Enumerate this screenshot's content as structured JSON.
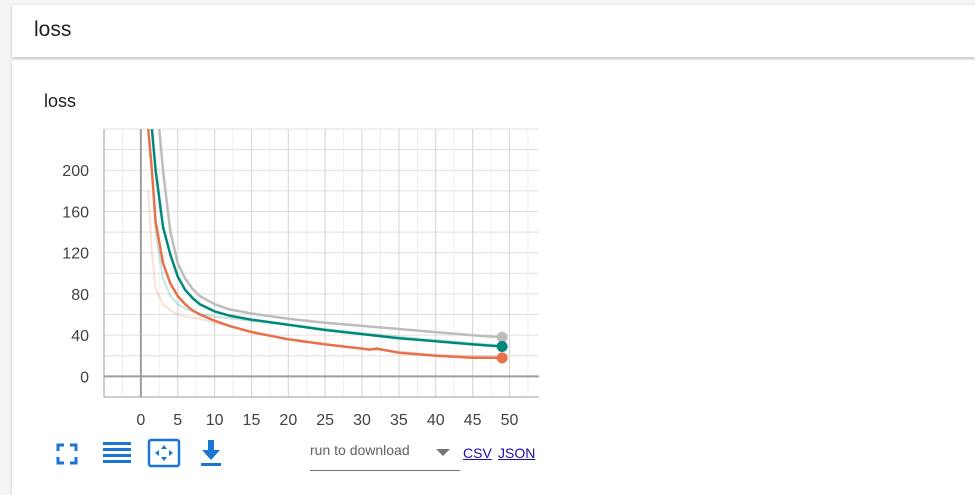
{
  "header": {
    "title": "loss"
  },
  "chart_data": {
    "type": "line",
    "title": "loss",
    "xlabel": "",
    "ylabel": "",
    "xlim": [
      -5,
      54
    ],
    "ylim": [
      -20,
      240
    ],
    "x_ticks": [
      0,
      5,
      10,
      15,
      20,
      25,
      30,
      35,
      40,
      45,
      50
    ],
    "y_ticks": [
      0,
      40,
      80,
      120,
      160,
      200
    ],
    "grid": true,
    "legend": "none",
    "series": [
      {
        "color": "#bdbdbd",
        "smoothed": true,
        "x": [
          2.5,
          3,
          4,
          5,
          6,
          7,
          8,
          10,
          12,
          15,
          20,
          25,
          30,
          35,
          40,
          45,
          49
        ],
        "y": [
          240,
          200,
          140,
          110,
          95,
          85,
          78,
          70,
          65,
          61,
          56,
          52,
          49,
          46,
          43,
          40,
          38
        ]
      },
      {
        "color": "#00897b",
        "smoothed": true,
        "x": [
          1.5,
          2,
          3,
          4,
          5,
          6,
          7,
          8,
          10,
          12,
          15,
          20,
          25,
          30,
          35,
          40,
          45,
          49
        ],
        "y": [
          240,
          200,
          145,
          118,
          97,
          84,
          76,
          70,
          63,
          59,
          55,
          50,
          45,
          41,
          37,
          34,
          31,
          29
        ]
      },
      {
        "color": "#e8704a",
        "smoothed": true,
        "x": [
          1,
          1.5,
          2,
          3,
          4,
          5,
          6,
          7,
          8,
          10,
          12,
          15,
          20,
          25,
          30,
          31,
          32,
          35,
          40,
          45,
          49
        ],
        "y": [
          240,
          200,
          150,
          110,
          90,
          78,
          70,
          64,
          60,
          54,
          49,
          43,
          36,
          31,
          27,
          26,
          27,
          23,
          20,
          18,
          18
        ]
      },
      {
        "color": "#e8704a",
        "smoothed": false,
        "x": [
          1,
          1.5,
          2,
          3,
          4,
          5,
          6,
          8,
          10,
          15,
          20,
          30,
          40,
          49
        ],
        "y": [
          180,
          120,
          85,
          70,
          64,
          60,
          58,
          56,
          52,
          44,
          36,
          27,
          21,
          19
        ]
      },
      {
        "color": "#00897b",
        "smoothed": false,
        "x": [
          1.5,
          2,
          3,
          4,
          5,
          6,
          7,
          8,
          10,
          15,
          20,
          30,
          40,
          49
        ],
        "y": [
          200,
          140,
          95,
          78,
          70,
          66,
          63,
          61,
          58,
          54,
          50,
          42,
          35,
          30
        ]
      }
    ],
    "end_markers": [
      {
        "color": "#bdbdbd",
        "x": 49,
        "y": 38
      },
      {
        "color": "#00897b",
        "x": 49,
        "y": 29
      },
      {
        "color": "#e8704a",
        "x": 49,
        "y": 18
      }
    ]
  },
  "toolbar": {
    "expand_icon": "fullscreen-icon",
    "log_icon": "lines-icon",
    "fit_icon": "fit-domain-icon",
    "download_icon": "download-icon",
    "accent_color": "#1976d2"
  },
  "download": {
    "run_placeholder": "run to download",
    "csv_label": "CSV",
    "json_label": "JSON"
  }
}
